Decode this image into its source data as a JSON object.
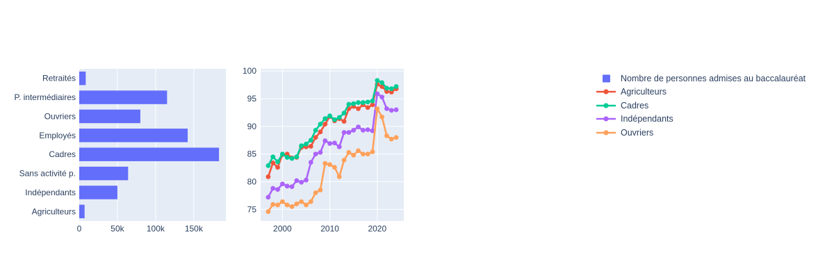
{
  "figure": {
    "background": "#ffffff",
    "plot_bgcolor": "#E5ECF6",
    "grid_color": "#ffffff",
    "text_color": "#2a3f5f",
    "accent": "#636EFA"
  },
  "legend": {
    "items": [
      {
        "id": "bac-admissions",
        "label": "Nombre de personnes admises au baccalauréat",
        "marker": "square",
        "color": "#636EFA"
      },
      {
        "id": "agriculteurs",
        "label": "Agriculteurs",
        "marker": "line-dot",
        "color": "#EF553B"
      },
      {
        "id": "cadres",
        "label": "Cadres",
        "marker": "line-dot",
        "color": "#00CC96"
      },
      {
        "id": "independants",
        "label": "Indépendants",
        "marker": "line-dot",
        "color": "#AB63FA"
      },
      {
        "id": "ouvriers",
        "label": "Ouvriers",
        "marker": "line-dot",
        "color": "#FFA15A"
      }
    ]
  },
  "chart_data": [
    {
      "type": "bar",
      "orientation": "horizontal",
      "name": "Nombre de personnes admises au baccalauréat",
      "bar_color": "#636EFA",
      "categories": [
        "Retraités",
        "P. intermédiaires",
        "Ouvriers",
        "Employés",
        "Cadres",
        "Sans activité p.",
        "Indépendants",
        "Agriculteurs"
      ],
      "values": [
        8500,
        115000,
        80000,
        142000,
        183000,
        64000,
        50000,
        7000
      ],
      "xticks": [
        {
          "value": 0,
          "label": "0"
        },
        {
          "value": 50000,
          "label": "50k"
        },
        {
          "value": 100000,
          "label": "100k"
        },
        {
          "value": 150000,
          "label": "150k"
        }
      ],
      "xlim": [
        0,
        192000
      ],
      "grid": true,
      "title": "",
      "xlabel": "",
      "ylabel": ""
    },
    {
      "type": "line",
      "x": [
        1997,
        1998,
        1999,
        2000,
        2001,
        2002,
        2003,
        2004,
        2005,
        2006,
        2007,
        2008,
        2009,
        2010,
        2011,
        2012,
        2013,
        2014,
        2015,
        2016,
        2017,
        2018,
        2019,
        2020,
        2021,
        2022,
        2023,
        2024
      ],
      "series": [
        {
          "name": "Agriculteurs",
          "color": "#EF553B",
          "values": [
            80.9,
            83.4,
            82.6,
            84.9,
            85.0,
            84.3,
            84.4,
            86.2,
            86.3,
            86.4,
            88.0,
            89.0,
            90.4,
            91.8,
            91.0,
            91.4,
            90.9,
            93.2,
            93.6,
            93.2,
            93.9,
            93.4,
            93.9,
            97.6,
            97.2,
            96.3,
            96.2,
            96.8
          ]
        },
        {
          "name": "Cadres",
          "color": "#00CC96",
          "values": [
            82.9,
            84.5,
            83.6,
            85.0,
            84.4,
            84.2,
            84.5,
            86.5,
            86.8,
            87.5,
            89.3,
            90.4,
            91.4,
            91.9,
            91.2,
            91.6,
            92.4,
            94.0,
            94.1,
            94.3,
            94.3,
            94.4,
            94.6,
            98.3,
            97.9,
            96.9,
            96.8,
            97.2
          ]
        },
        {
          "name": "Indépendants",
          "color": "#AB63FA",
          "values": [
            77.2,
            78.8,
            78.6,
            79.6,
            79.2,
            79.1,
            80.2,
            79.9,
            80.3,
            83.5,
            85.0,
            85.3,
            87.4,
            86.9,
            87.0,
            86.3,
            88.9,
            88.9,
            89.3,
            89.9,
            89.3,
            89.4,
            89.2,
            95.9,
            95.3,
            93.2,
            92.9,
            93.0
          ]
        },
        {
          "name": "Ouvriers",
          "color": "#FFA15A",
          "values": [
            74.6,
            75.9,
            75.8,
            76.4,
            75.8,
            75.5,
            76.0,
            76.4,
            75.8,
            76.4,
            78.0,
            78.5,
            83.3,
            83.1,
            82.6,
            80.9,
            83.9,
            85.3,
            84.8,
            85.6,
            85.0,
            85.0,
            85.4,
            93.2,
            91.7,
            88.3,
            87.7,
            88.0
          ]
        }
      ],
      "xticks": [
        {
          "value": 2000,
          "label": "2000"
        },
        {
          "value": 2010,
          "label": "2010"
        },
        {
          "value": 2020,
          "label": "2020"
        }
      ],
      "yticks": [
        {
          "value": 75,
          "label": "75"
        },
        {
          "value": 80,
          "label": "80"
        },
        {
          "value": 85,
          "label": "85"
        },
        {
          "value": 90,
          "label": "90"
        },
        {
          "value": 95,
          "label": "95"
        },
        {
          "value": 100,
          "label": "100"
        }
      ],
      "xlim": [
        1995.4,
        2025.6
      ],
      "ylim": [
        72.9,
        100.4
      ],
      "grid": true,
      "legend_position": "right",
      "title": "",
      "xlabel": "",
      "ylabel": ""
    }
  ]
}
